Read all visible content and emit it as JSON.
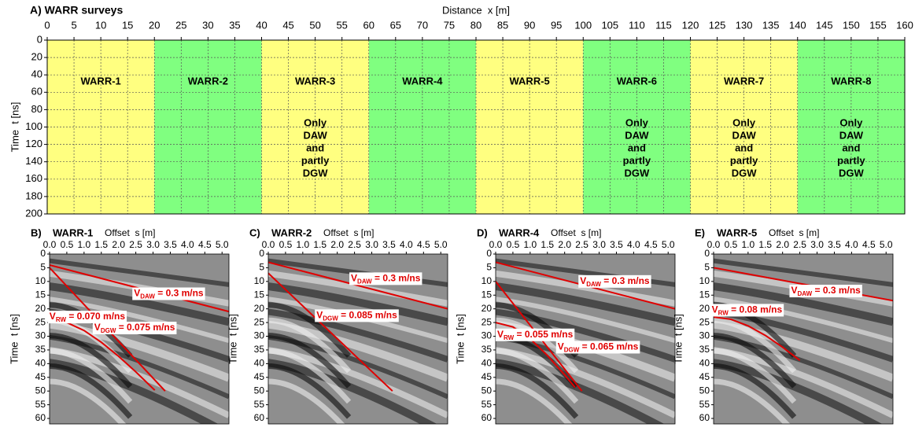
{
  "chart_data": [
    {
      "type": "regions",
      "title": "A) WARR surveys",
      "xlabel": "Distance  x [m]",
      "ylabel": "Time  t [ns]",
      "xlim": [
        0,
        160
      ],
      "xticks": [
        0,
        5,
        10,
        15,
        20,
        25,
        30,
        35,
        40,
        45,
        50,
        55,
        60,
        65,
        70,
        75,
        80,
        85,
        90,
        95,
        100,
        105,
        110,
        115,
        120,
        125,
        130,
        135,
        140,
        145,
        150,
        155,
        160
      ],
      "ylim": [
        0,
        200
      ],
      "yticks": [
        0,
        20,
        40,
        60,
        80,
        100,
        120,
        140,
        160,
        180,
        200
      ],
      "y_inverted": true,
      "grid": true,
      "regions": [
        {
          "x": [
            0,
            20
          ],
          "color": "#ffff80",
          "label": "WARR-1"
        },
        {
          "x": [
            20,
            40
          ],
          "color": "#80ff80",
          "label": "WARR-2"
        },
        {
          "x": [
            40,
            60
          ],
          "color": "#ffff80",
          "label": "WARR-3",
          "note": [
            "Only",
            "DAW",
            "and",
            "partly",
            "DGW"
          ]
        },
        {
          "x": [
            60,
            80
          ],
          "color": "#80ff80",
          "label": "WARR-4"
        },
        {
          "x": [
            80,
            100
          ],
          "color": "#ffff80",
          "label": "WARR-5"
        },
        {
          "x": [
            100,
            120
          ],
          "color": "#80ff80",
          "label": "WARR-6",
          "note": [
            "Only",
            "DAW",
            "and",
            "partly",
            "DGW"
          ]
        },
        {
          "x": [
            120,
            140
          ],
          "color": "#ffff80",
          "label": "WARR-7",
          "note": [
            "Only",
            "DAW",
            "and",
            "partly",
            "DGW"
          ]
        },
        {
          "x": [
            140,
            160
          ],
          "color": "#80ff80",
          "label": "WARR-8",
          "note": [
            "Only",
            "DAW",
            "and",
            "partly",
            "DGW"
          ]
        }
      ]
    },
    {
      "type": "line",
      "panel_label": "B)",
      "title": "WARR-1",
      "xlabel": "Offset  s [m]",
      "ylabel": "Time  t [ns]",
      "xlim": [
        0,
        5.2
      ],
      "xticks": [
        {
          "value": 0,
          "label": "0.0"
        },
        0.5,
        {
          "value": 1,
          "label": "1.0"
        },
        1.5,
        {
          "value": 2,
          "label": "2.0"
        },
        2.5,
        {
          "value": 3,
          "label": "3.0"
        },
        3.5,
        {
          "value": 4,
          "label": "4.0"
        },
        4.5,
        {
          "value": 5,
          "label": "5.0"
        }
      ],
      "ylim": [
        0,
        62
      ],
      "yticks": [
        0,
        5,
        10,
        15,
        20,
        25,
        30,
        35,
        40,
        45,
        50,
        55,
        60
      ],
      "y_inverted": true,
      "series": [
        {
          "color": "#e00000",
          "x": [
            0,
            5.2
          ],
          "values": [
            4,
            21
          ]
        },
        {
          "color": "#e00000",
          "x": [
            0,
            3.35
          ],
          "values": [
            5,
            50
          ]
        },
        {
          "color": "#e00000",
          "x": [
            0,
            0.5,
            1,
            1.5,
            2,
            2.5,
            3.05
          ],
          "values": [
            24,
            25,
            27.9,
            32.2,
            37.3,
            43,
            49.7
          ]
        }
      ],
      "annotations": [
        {
          "symbol": "V",
          "subscript": "DAW",
          "text": " = 0.3 m/ns"
        },
        {
          "symbol": "V",
          "subscript": "RW",
          "text": " = 0.070 m/ns"
        },
        {
          "symbol": "V",
          "subscript": "DGW",
          "text": " = 0.075 m/ns"
        }
      ]
    },
    {
      "type": "line",
      "panel_label": "C)",
      "title": "WARR-2",
      "xlabel": "Offset  s [m]",
      "ylabel": "Time  t [ns]",
      "xlim": [
        0,
        5.2
      ],
      "xticks": [
        {
          "value": 0,
          "label": "0.0"
        },
        0.5,
        {
          "value": 1,
          "label": "1.0"
        },
        1.5,
        {
          "value": 2,
          "label": "2.0"
        },
        2.5,
        {
          "value": 3,
          "label": "3.0"
        },
        3.5,
        {
          "value": 4,
          "label": "4.0"
        },
        4.5,
        {
          "value": 5,
          "label": "5.0"
        }
      ],
      "ylim": [
        0,
        62
      ],
      "yticks": [
        0,
        5,
        10,
        15,
        20,
        25,
        30,
        35,
        40,
        45,
        50,
        55,
        60
      ],
      "y_inverted": true,
      "series": [
        {
          "color": "#e00000",
          "x": [
            0,
            5.2
          ],
          "values": [
            3,
            20
          ]
        },
        {
          "color": "#e00000",
          "x": [
            0,
            3.6
          ],
          "values": [
            7,
            50
          ]
        }
      ],
      "annotations": [
        {
          "symbol": "V",
          "subscript": "DAW",
          "text": " = 0.3 m/ns"
        },
        {
          "symbol": "V",
          "subscript": "DGW",
          "text": " = 0.085 m/ns"
        }
      ]
    },
    {
      "type": "line",
      "panel_label": "D)",
      "title": "WARR-4",
      "xlabel": "Offset  s [m]",
      "ylabel": "Time  t [ns]",
      "xlim": [
        0,
        5.2
      ],
      "xticks": [
        {
          "value": 0,
          "label": "0.0"
        },
        0.5,
        {
          "value": 1,
          "label": "1.0"
        },
        1.5,
        {
          "value": 2,
          "label": "2.0"
        },
        2.5,
        {
          "value": 3,
          "label": "3.0"
        },
        3.5,
        {
          "value": 4,
          "label": "4.0"
        },
        4.5,
        {
          "value": 5,
          "label": "5.0"
        }
      ],
      "ylim": [
        0,
        62
      ],
      "yticks": [
        0,
        5,
        10,
        15,
        20,
        25,
        30,
        35,
        40,
        45,
        50,
        55,
        60
      ],
      "y_inverted": true,
      "series": [
        {
          "color": "#e00000",
          "x": [
            0,
            5.2
          ],
          "values": [
            3,
            20
          ]
        },
        {
          "color": "#e00000",
          "x": [
            0,
            2.5
          ],
          "values": [
            10,
            50
          ]
        },
        {
          "color": "#e00000",
          "x": [
            0,
            0.5,
            1,
            1.5,
            2,
            2.3
          ],
          "values": [
            25,
            26.6,
            30.9,
            37,
            44.1,
            48.7
          ]
        }
      ],
      "annotations": [
        {
          "symbol": "V",
          "subscript": "DAW",
          "text": " = 0.3 m/ns"
        },
        {
          "symbol": "V",
          "subscript": "RW",
          "text": " = 0.055 m/ns"
        },
        {
          "symbol": "V",
          "subscript": "DGW",
          "text": " = 0.065 m/ns"
        }
      ]
    },
    {
      "type": "line",
      "panel_label": "E)",
      "title": "WARR-5",
      "xlabel": "Offset  s [m]",
      "ylabel": "Time  t [ns]",
      "xlim": [
        0,
        5.2
      ],
      "xticks": [
        {
          "value": 0,
          "label": "0.0"
        },
        0.5,
        {
          "value": 1,
          "label": "1.0"
        },
        1.5,
        {
          "value": 2,
          "label": "2.0"
        },
        2.5,
        {
          "value": 3,
          "label": "3.0"
        },
        3.5,
        {
          "value": 4,
          "label": "4.0"
        },
        4.5,
        {
          "value": 5,
          "label": "5.0"
        }
      ],
      "ylim": [
        0,
        62
      ],
      "yticks": [
        0,
        5,
        10,
        15,
        20,
        25,
        30,
        35,
        40,
        45,
        50,
        55,
        60
      ],
      "y_inverted": true,
      "series": [
        {
          "color": "#e00000",
          "x": [
            0,
            5.2
          ],
          "values": [
            5,
            17
          ]
        },
        {
          "color": "#e00000",
          "x": [
            0,
            0.5,
            1,
            1.5,
            2,
            2.5
          ],
          "values": [
            23,
            23.8,
            26.2,
            29.7,
            34,
            38.8
          ]
        }
      ],
      "annotations": [
        {
          "symbol": "V",
          "subscript": "DAW",
          "text": " = 0.3 m/ns"
        },
        {
          "symbol": "V",
          "subscript": "RW",
          "text": " = 0.08 m/ns"
        }
      ]
    }
  ]
}
